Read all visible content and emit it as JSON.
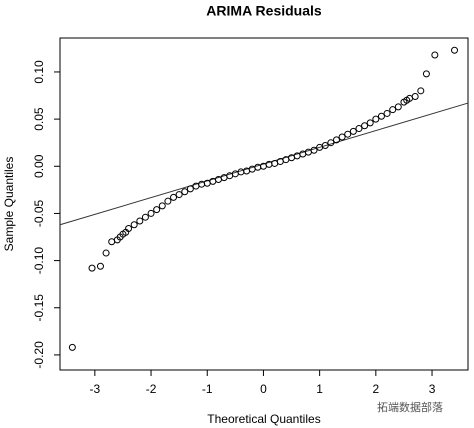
{
  "chart_data": {
    "type": "scatter",
    "title": "ARIMA Residuals",
    "x_label": "Theoretical Quantiles",
    "y_label": "Sample Quantiles",
    "watermark": "拓端数据部落",
    "xlim": [
      -3.62,
      3.64
    ],
    "ylim": [
      -0.216,
      0.136
    ],
    "xticks": [
      -3,
      -2,
      -1,
      0,
      1,
      2,
      3
    ],
    "yticks": [
      {
        "value": -0.2,
        "label": "-0.20"
      },
      -0.15,
      {
        "value": -0.1,
        "label": "-0.10"
      },
      -0.05,
      {
        "value": 0,
        "label": "0.00"
      },
      0.05,
      {
        "value": 0.1,
        "label": "0.10"
      }
    ],
    "color": "#000000",
    "reference_line": {
      "x": [
        -3.62,
        3.64
      ],
      "y": [
        -0.062,
        0.067
      ]
    },
    "x": [
      -3.4,
      -3.05,
      -2.9,
      -2.8,
      -2.7,
      -2.6,
      -2.55,
      -2.5,
      -2.45,
      -2.4,
      -2.3,
      -2.2,
      -2.1,
      -2.0,
      -1.9,
      -1.8,
      -1.7,
      -1.6,
      -1.5,
      -1.4,
      -1.3,
      -1.2,
      -1.1,
      -1.0,
      -0.9,
      -0.8,
      -0.7,
      -0.6,
      -0.5,
      -0.4,
      -0.3,
      -0.2,
      -0.1,
      0,
      0.1,
      0.2,
      0.3,
      0.4,
      0.5,
      0.6,
      0.7,
      0.8,
      0.9,
      1.0,
      1.1,
      1.2,
      1.3,
      1.4,
      1.5,
      1.6,
      1.7,
      1.8,
      1.9,
      2.0,
      2.1,
      2.2,
      2.3,
      2.4,
      2.5,
      2.55,
      2.6,
      2.7,
      2.8,
      2.9,
      3.05,
      3.4
    ],
    "values": [
      -0.192,
      -0.108,
      -0.106,
      -0.092,
      -0.08,
      -0.078,
      -0.075,
      -0.072,
      -0.07,
      -0.066,
      -0.062,
      -0.058,
      -0.054,
      -0.05,
      -0.046,
      -0.042,
      -0.037,
      -0.033,
      -0.03,
      -0.027,
      -0.024,
      -0.021,
      -0.019,
      -0.018,
      -0.016,
      -0.014,
      -0.012,
      -0.01,
      -0.008,
      -0.006,
      -0.005,
      -0.003,
      -0.001,
      0,
      0.002,
      0.003,
      0.005,
      0.007,
      0.009,
      0.011,
      0.013,
      0.015,
      0.017,
      0.02,
      0.022,
      0.025,
      0.028,
      0.031,
      0.034,
      0.037,
      0.04,
      0.043,
      0.046,
      0.05,
      0.053,
      0.056,
      0.06,
      0.063,
      0.068,
      0.07,
      0.072,
      0.074,
      0.08,
      0.098,
      0.118,
      0.123
    ]
  }
}
